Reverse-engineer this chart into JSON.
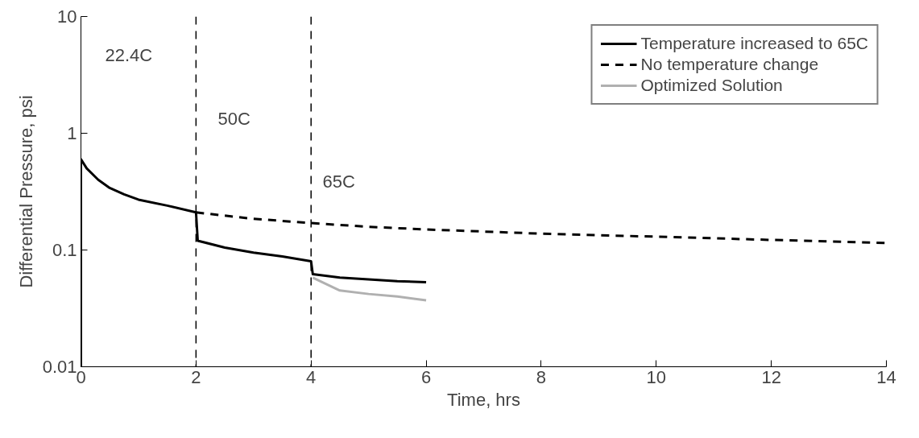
{
  "chart_data": {
    "type": "line",
    "xlabel": "Time, hrs",
    "ylabel": "Differential Pressure, psi",
    "log": "y",
    "xlim": [
      0,
      14
    ],
    "ylim": [
      0.01,
      10
    ],
    "xticks": [
      0,
      2,
      4,
      6,
      8,
      10,
      12,
      14
    ],
    "yticks": [
      0.01,
      0.1,
      1,
      10
    ],
    "grid": false,
    "legend": "top right",
    "marker": "none",
    "series": [
      {
        "name": "Temperature increased to 65C",
        "color": "#000000",
        "line_style": "solid",
        "x": [
          0,
          0,
          0.1,
          0.3,
          0.5,
          0.75,
          1,
          1.5,
          2,
          2.03,
          2.5,
          3,
          3.5,
          4,
          4.03,
          4.5,
          5,
          5.5,
          6
        ],
        "values": [
          0.01,
          0.6,
          0.5,
          0.4,
          0.34,
          0.3,
          0.27,
          0.24,
          0.21,
          0.12,
          0.105,
          0.095,
          0.088,
          0.08,
          0.062,
          0.058,
          0.056,
          0.054,
          0.053
        ]
      },
      {
        "name": "No temperature change",
        "color": "#000000",
        "line_style": "dashed",
        "x": [
          2,
          3,
          4,
          5,
          6,
          8,
          10,
          12,
          14
        ],
        "values": [
          0.21,
          0.185,
          0.17,
          0.158,
          0.15,
          0.138,
          0.13,
          0.122,
          0.115
        ]
      },
      {
        "name": "Optimized Solution",
        "color": "#b0b0b0",
        "line_style": "solid",
        "x": [
          4.03,
          4.5,
          5,
          5.5,
          6
        ],
        "values": [
          0.058,
          0.045,
          0.042,
          0.04,
          0.037
        ]
      }
    ],
    "ref_lines": [
      {
        "axis": "x",
        "value": 2,
        "line_style": "dashed",
        "color": "#000000"
      },
      {
        "axis": "x",
        "value": 4,
        "line_style": "dashed",
        "color": "#000000"
      }
    ],
    "annotations": [
      "22.4C",
      "50C",
      "65C"
    ]
  }
}
